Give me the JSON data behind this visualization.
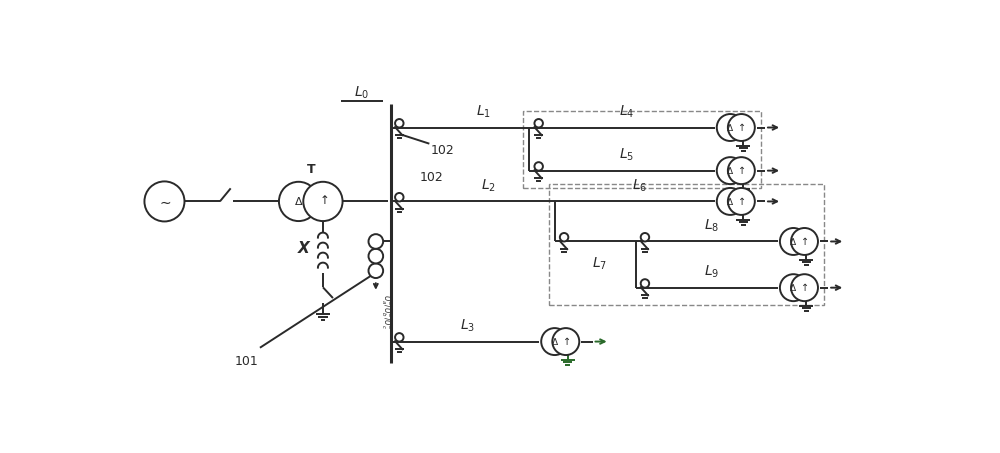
{
  "bg_color": "#ffffff",
  "line_color": "#2a2a2a",
  "lw": 1.4,
  "fig_width": 10.0,
  "fig_height": 4.53,
  "dpi": 100,
  "xlim": [
    0,
    10
  ],
  "ylim": [
    0,
    4.53
  ]
}
